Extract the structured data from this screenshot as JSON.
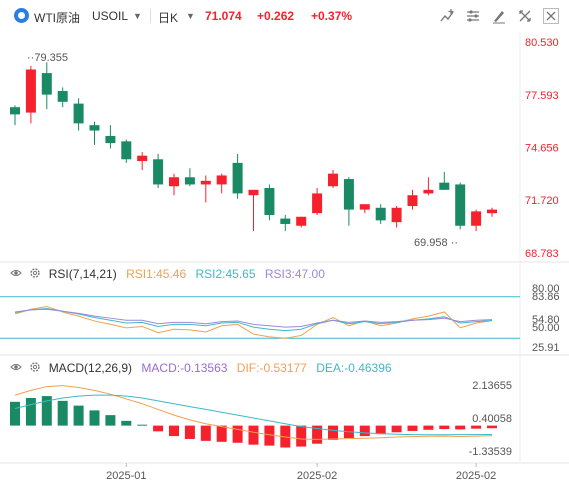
{
  "header": {
    "symbol": "WTI原油",
    "code": "USOIL",
    "period": "日K",
    "price": "71.074",
    "change": "+0.262",
    "change_pct": "+0.37%",
    "up_color": "#f5222d",
    "down_color": "#1a8a64",
    "tools": [
      "add-chart-icon",
      "settings-sliders-icon",
      "draw-pen-icon",
      "compare-icon",
      "expand-icon",
      "close-icon"
    ]
  },
  "main_chart": {
    "yticks": [
      "80.530",
      "77.593",
      "74.656",
      "71.720",
      "68.783"
    ],
    "high_label": "79.355",
    "low_label": "69.958"
  },
  "rsi": {
    "title": "RSI(7,14,21)",
    "rsi1": "RSI1:45.46",
    "rsi2": "RSI2:45.65",
    "rsi3": "RSI3:47.00",
    "levels": [
      "80.00",
      "83.86",
      "54.80",
      "50.00",
      "25.91"
    ],
    "colors": {
      "rsi1": "#f0a050",
      "rsi2": "#3db8c8",
      "rsi3": "#9a8ad8"
    }
  },
  "macd": {
    "title": "MACD(12,26,9)",
    "macd_label": "MACD:-0.13563",
    "dif_label": "DIF:-0.53177",
    "dea_label": "DEA:-0.46396",
    "yticks": [
      "2.13655",
      "0.40058",
      "-1.33539"
    ],
    "colors": {
      "macd": "#9a6ad8",
      "dif": "#f0a050",
      "dea": "#3db8c8"
    }
  },
  "xaxis": {
    "labels": [
      "2025-01",
      "2025-02",
      "2025-02"
    ]
  },
  "chart_data": {
    "type": "candlestick",
    "ylim": [
      68.783,
      80.53
    ],
    "candles": [
      {
        "o": 76.9,
        "h": 77.0,
        "l": 75.9,
        "c": 76.5
      },
      {
        "o": 76.6,
        "h": 79.2,
        "l": 76.0,
        "c": 79.0
      },
      {
        "o": 78.8,
        "h": 79.4,
        "l": 76.8,
        "c": 77.6
      },
      {
        "o": 77.8,
        "h": 78.0,
        "l": 76.9,
        "c": 77.2
      },
      {
        "o": 77.1,
        "h": 77.4,
        "l": 75.6,
        "c": 76.0
      },
      {
        "o": 75.9,
        "h": 76.1,
        "l": 74.8,
        "c": 75.6
      },
      {
        "o": 75.3,
        "h": 75.9,
        "l": 74.6,
        "c": 74.9
      },
      {
        "o": 75.0,
        "h": 75.1,
        "l": 73.8,
        "c": 74.0
      },
      {
        "o": 73.9,
        "h": 74.4,
        "l": 73.4,
        "c": 74.2
      },
      {
        "o": 74.0,
        "h": 74.3,
        "l": 72.4,
        "c": 72.6
      },
      {
        "o": 72.5,
        "h": 73.2,
        "l": 72.0,
        "c": 73.0
      },
      {
        "o": 73.0,
        "h": 73.5,
        "l": 72.5,
        "c": 72.6
      },
      {
        "o": 72.6,
        "h": 73.1,
        "l": 71.6,
        "c": 72.8
      },
      {
        "o": 72.6,
        "h": 73.2,
        "l": 72.1,
        "c": 73.1
      },
      {
        "o": 73.8,
        "h": 74.3,
        "l": 71.8,
        "c": 72.1
      },
      {
        "o": 72.0,
        "h": 72.3,
        "l": 70.0,
        "c": 72.3
      },
      {
        "o": 72.4,
        "h": 72.6,
        "l": 70.6,
        "c": 70.9
      },
      {
        "o": 70.7,
        "h": 70.9,
        "l": 70.0,
        "c": 70.4
      },
      {
        "o": 70.3,
        "h": 70.8,
        "l": 70.2,
        "c": 70.8
      },
      {
        "o": 71.0,
        "h": 72.4,
        "l": 70.9,
        "c": 72.1
      },
      {
        "o": 72.5,
        "h": 73.4,
        "l": 72.4,
        "c": 73.2
      },
      {
        "o": 72.9,
        "h": 73.0,
        "l": 70.3,
        "c": 71.2
      },
      {
        "o": 71.2,
        "h": 71.4,
        "l": 71.0,
        "c": 71.5
      },
      {
        "o": 71.3,
        "h": 71.5,
        "l": 70.4,
        "c": 70.6
      },
      {
        "o": 70.5,
        "h": 71.4,
        "l": 70.2,
        "c": 71.3
      },
      {
        "o": 71.4,
        "h": 72.3,
        "l": 71.2,
        "c": 72.0
      },
      {
        "o": 72.1,
        "h": 73.0,
        "l": 72.0,
        "c": 72.3
      },
      {
        "o": 72.7,
        "h": 73.3,
        "l": 72.3,
        "c": 72.3
      },
      {
        "o": 72.6,
        "h": 72.7,
        "l": 70.1,
        "c": 70.3
      },
      {
        "o": 70.3,
        "h": 71.2,
        "l": 70.0,
        "c": 71.1
      },
      {
        "o": 71.0,
        "h": 71.3,
        "l": 70.8,
        "c": 71.2
      }
    ],
    "rsi_range": [
      0,
      100
    ],
    "rsi1": [
      55,
      62,
      66,
      58,
      52,
      45,
      40,
      35,
      37,
      28,
      33,
      32,
      29,
      38,
      40,
      26,
      22,
      20,
      24,
      40,
      50,
      38,
      45,
      38,
      42,
      48,
      52,
      58,
      35,
      42,
      45.46
    ],
    "rsi2": [
      57,
      61,
      63,
      59,
      55,
      50,
      46,
      42,
      43,
      37,
      40,
      40,
      38,
      42,
      43,
      36,
      33,
      31,
      33,
      41,
      46,
      41,
      44,
      41,
      43,
      46,
      48,
      51,
      42,
      44,
      45.65
    ],
    "rsi3": [
      58,
      61,
      62,
      59,
      56,
      52,
      49,
      46,
      46,
      41,
      43,
      43,
      41,
      44,
      45,
      40,
      38,
      36,
      37,
      42,
      46,
      43,
      45,
      43,
      44,
      46,
      47,
      49,
      44,
      46,
      47.0
    ],
    "macd_range": [
      -1.7,
      2.5
    ],
    "macd_hist": [
      1.25,
      1.45,
      1.55,
      1.3,
      1.05,
      0.8,
      0.55,
      0.25,
      0.05,
      -0.3,
      -0.55,
      -0.7,
      -0.8,
      -0.85,
      -0.9,
      -1.0,
      -1.05,
      -1.15,
      -1.1,
      -0.95,
      -0.75,
      -0.65,
      -0.55,
      -0.45,
      -0.35,
      -0.28,
      -0.22,
      -0.18,
      -0.2,
      -0.16,
      -0.13563
    ],
    "dif": [
      1.6,
      1.85,
      2.05,
      2.1,
      2.0,
      1.85,
      1.65,
      1.4,
      1.15,
      0.85,
      0.55,
      0.3,
      0.1,
      -0.05,
      -0.2,
      -0.35,
      -0.48,
      -0.6,
      -0.7,
      -0.72,
      -0.7,
      -0.68,
      -0.66,
      -0.64,
      -0.6,
      -0.58,
      -0.56,
      -0.55,
      -0.57,
      -0.55,
      -0.53177
    ],
    "dea": [
      0.9,
      1.1,
      1.3,
      1.45,
      1.55,
      1.6,
      1.6,
      1.55,
      1.45,
      1.3,
      1.15,
      1.0,
      0.85,
      0.7,
      0.55,
      0.4,
      0.25,
      0.1,
      -0.05,
      -0.15,
      -0.25,
      -0.32,
      -0.38,
      -0.42,
      -0.45,
      -0.47,
      -0.48,
      -0.48,
      -0.47,
      -0.47,
      -0.46396
    ],
    "x_labels": [
      "2025-01",
      "2025-02",
      "2025-02"
    ]
  }
}
